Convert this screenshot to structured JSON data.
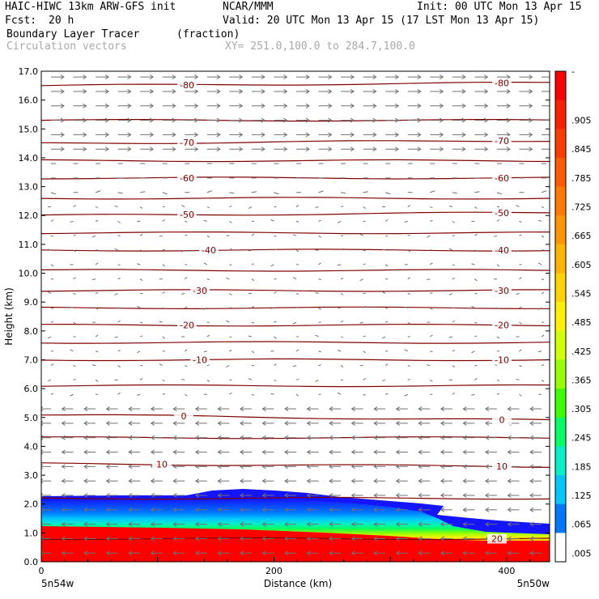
{
  "header": {
    "model": "HAIC-HIWC 13km ARW-GFS init",
    "org": "NCAR/MMM",
    "init": "Init: 00 UTC Mon 13 Apr 15",
    "fcst_label": "Fcst:",
    "fcst_value": "20 h",
    "valid": "Valid: 20 UTC Mon 13 Apr 15 (17 LST Mon 13 Apr 15)",
    "field": "Boundary Layer Tracer",
    "units": "(fraction)",
    "overlay": "Circulation vectors",
    "xy": "XY= 251.0,100.0 to 284.7,100.0"
  },
  "chart_data": {
    "type": "heatmap",
    "xlabel": "Distance (km)",
    "ylabel": "Height (km)",
    "xlim": [
      0,
      437
    ],
    "ylim": [
      0,
      17
    ],
    "x_ticks": [
      "0",
      "200",
      "400"
    ],
    "x_end_labels": [
      "5n54w",
      "5n50w"
    ],
    "y_ticks": [
      "0.0",
      "1.0",
      "2.0",
      "3.0",
      "4.0",
      "5.0",
      "6.0",
      "7.0",
      "8.0",
      "9.0",
      "10.0",
      "11.0",
      "12.0",
      "13.0",
      "14.0",
      "15.0",
      "16.0",
      "17.0"
    ],
    "colorbar": {
      "labels": [
        "-",
        ".905",
        ".845",
        ".785",
        ".725",
        ".665",
        ".605",
        ".545",
        ".485",
        ".425",
        ".365",
        ".305",
        ".245",
        ".185",
        ".125",
        ".065",
        ".005"
      ],
      "colors": [
        "#ff0000",
        "#ff1e00",
        "#ff3c00",
        "#ff5a00",
        "#ff7800",
        "#ff9600",
        "#ffb400",
        "#ffd200",
        "#fff000",
        "#d2ff00",
        "#96ff00",
        "#3cff00",
        "#00ff64",
        "#00f0c8",
        "#00c8ff",
        "#0078ff",
        "#ffffff"
      ]
    },
    "temperature_contours": [
      {
        "label": "-80",
        "z": [
          16.5,
          16.6
        ]
      },
      {
        "label": "-70",
        "z": [
          14.5,
          14.6
        ]
      },
      {
        "label": "-60",
        "z": [
          13.3,
          13.3
        ]
      },
      {
        "label": "-50",
        "z": [
          12.0,
          12.1
        ]
      },
      {
        "label": "-40",
        "z": [
          10.8,
          10.8
        ]
      },
      {
        "label": "-30",
        "z": [
          9.4,
          9.4
        ]
      },
      {
        "label": "-20",
        "z": [
          8.2,
          8.2
        ]
      },
      {
        "label": "-10",
        "z": [
          7.0,
          7.0
        ]
      },
      {
        "label": "0",
        "z": [
          5.1,
          4.9
        ]
      },
      {
        "label": "10",
        "z": [
          3.4,
          3.3
        ]
      },
      {
        "label": "20",
        "z": [
          0.8,
          0.8
        ]
      }
    ],
    "unlabeled_contours_z": [
      15.3,
      13.9,
      12.6,
      11.4,
      10.1,
      8.8,
      7.6,
      6.1,
      4.3,
      2.2
    ]
  }
}
